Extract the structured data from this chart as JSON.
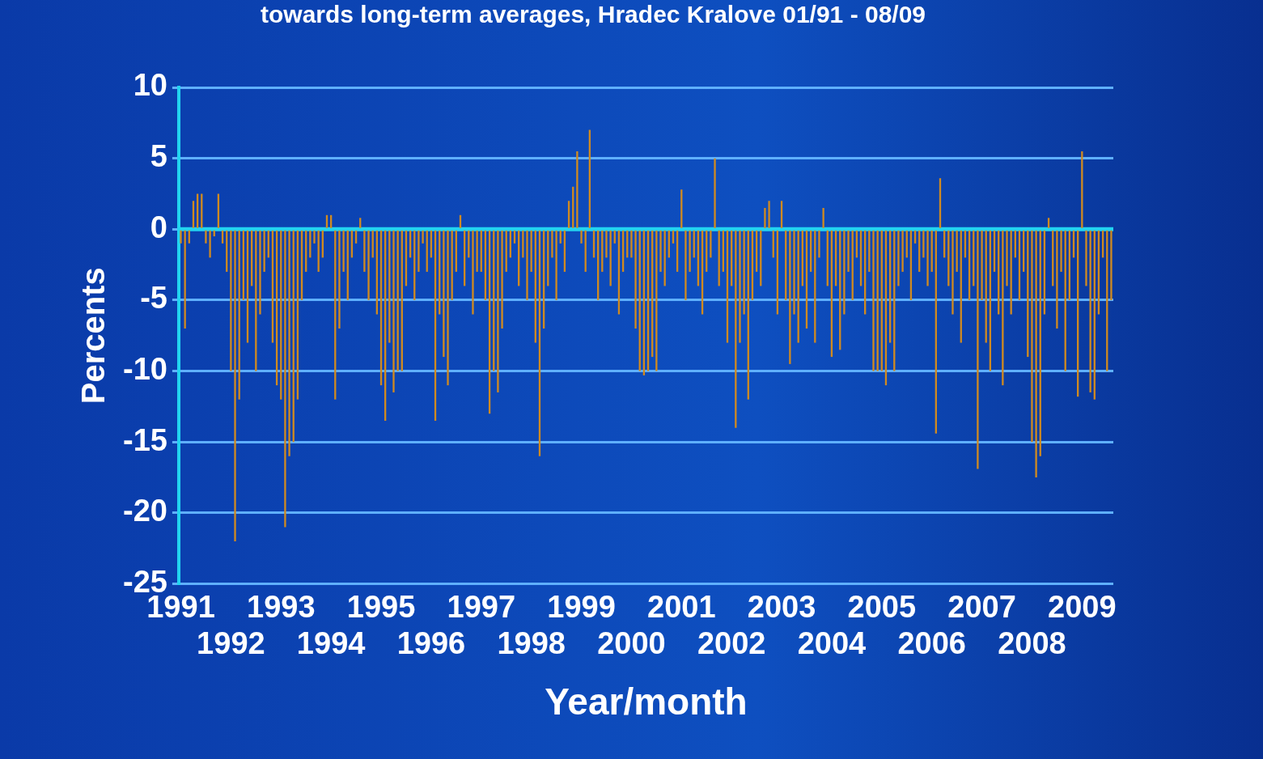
{
  "chart_data": {
    "type": "bar",
    "title": "towards long-term averages, Hradec Kralove 01/91 - 08/09",
    "xlabel": "Year/month",
    "ylabel": "Percents",
    "categories": [
      "1991",
      null,
      null,
      null,
      null,
      null,
      null,
      null,
      null,
      null,
      null,
      null,
      "1992",
      null,
      null,
      null,
      null,
      null,
      null,
      null,
      null,
      null,
      null,
      null,
      "1993",
      null,
      null,
      null,
      null,
      null,
      null,
      null,
      null,
      null,
      null,
      null,
      "1994",
      null,
      null,
      null,
      null,
      null,
      null,
      null,
      null,
      null,
      null,
      null,
      "1995",
      null,
      null,
      null,
      null,
      null,
      null,
      null,
      null,
      null,
      null,
      null,
      "1996",
      null,
      null,
      null,
      null,
      null,
      null,
      null,
      null,
      null,
      null,
      null,
      "1997",
      null,
      null,
      null,
      null,
      null,
      null,
      null,
      null,
      null,
      null,
      null,
      "1998",
      null,
      null,
      null,
      null,
      null,
      null,
      null,
      null,
      null,
      null,
      null,
      "1999",
      null,
      null,
      null,
      null,
      null,
      null,
      null,
      null,
      null,
      null,
      null,
      "2000",
      null,
      null,
      null,
      null,
      null,
      null,
      null,
      null,
      null,
      null,
      null,
      "2001",
      null,
      null,
      null,
      null,
      null,
      null,
      null,
      null,
      null,
      null,
      null,
      "2002",
      null,
      null,
      null,
      null,
      null,
      null,
      null,
      null,
      null,
      null,
      null,
      "2003",
      null,
      null,
      null,
      null,
      null,
      null,
      null,
      null,
      null,
      null,
      null,
      "2004",
      null,
      null,
      null,
      null,
      null,
      null,
      null,
      null,
      null,
      null,
      null,
      "2005",
      null,
      null,
      null,
      null,
      null,
      null,
      null,
      null,
      null,
      null,
      null,
      "2006",
      null,
      null,
      null,
      null,
      null,
      null,
      null,
      null,
      null,
      null,
      null,
      "2007",
      null,
      null,
      null,
      null,
      null,
      null,
      null,
      null,
      null,
      null,
      null,
      "2008",
      null,
      null,
      null,
      null,
      null,
      null,
      null,
      null,
      null,
      null,
      null,
      "2009",
      null,
      null,
      null,
      null,
      null,
      null,
      null
    ],
    "values": [
      -1,
      -7,
      -1,
      2,
      2.5,
      2.5,
      -1,
      -2,
      -0.5,
      2.5,
      -1,
      -3,
      -10,
      -22,
      -12,
      -5,
      -8,
      -4,
      -10,
      -6,
      -3,
      -2,
      -8,
      -11,
      -12,
      -21,
      -16,
      -15,
      -12,
      -5,
      -3,
      -2,
      -1,
      -3,
      -2,
      1,
      1,
      -12,
      -7,
      -3,
      -5,
      -2,
      -1,
      0.8,
      -3,
      -5,
      -2,
      -6,
      -11,
      -13.5,
      -8,
      -11.5,
      -10,
      -10,
      -4,
      -2,
      -5,
      -3,
      -1,
      -3,
      -2,
      -13.5,
      -6,
      -9,
      -11,
      -5,
      -3,
      1,
      -4,
      -2,
      -6,
      -3,
      -3,
      -5,
      -13,
      -10,
      -11.5,
      -7,
      -3,
      -2,
      -1,
      -4,
      -2,
      -5,
      -3,
      -8,
      -16,
      -7,
      -4,
      -2,
      -5,
      -1,
      -3,
      2,
      3,
      5.5,
      -1,
      -3,
      7,
      -2,
      -5,
      -3,
      -2,
      -4,
      -1,
      -6,
      -3,
      -2,
      -2,
      -7,
      -10,
      -10.3,
      -10,
      -9,
      -10,
      -3,
      -4,
      -2,
      -1,
      -3,
      2.8,
      -5,
      -3,
      -2,
      -4,
      -6,
      -3,
      -2,
      5,
      -4,
      -3,
      -8,
      -4,
      -14,
      -8,
      -6,
      -12,
      -5,
      -3,
      -4,
      1.5,
      2,
      -2,
      -6,
      2,
      -5,
      -9.5,
      -6,
      -8,
      -4,
      -7,
      -3,
      -8,
      -2,
      1.5,
      -4,
      -9,
      -4,
      -8.5,
      -6,
      -3,
      -5,
      -2,
      -4,
      -6,
      -3,
      -10,
      -10,
      -10,
      -11,
      -8,
      -10,
      -4,
      -3,
      -2,
      -5,
      -1,
      -3,
      -2,
      -4,
      -3,
      -14.4,
      3.6,
      -2,
      -4,
      -6,
      -3,
      -8,
      -2,
      -5,
      -4,
      -16.9,
      -5,
      -8,
      -10,
      -3,
      -6,
      -11,
      -4,
      -6,
      -2,
      -5,
      -3,
      -9,
      -15,
      -17.5,
      -16,
      -6,
      0.8,
      -4,
      -7,
      -3,
      -10,
      -5,
      -2,
      -11.8,
      5.5,
      -4,
      -11.5,
      -12,
      -6,
      -2,
      -10,
      -5
    ],
    "color": "#d08a20",
    "ylim": [
      -25,
      10
    ],
    "yticks": [
      -25,
      -20,
      -15,
      -10,
      -5,
      0,
      5,
      10
    ],
    "grid": "y",
    "legend": false,
    "ref_lines": [
      {
        "axis": "y",
        "value": 0,
        "color": "#22d4f0"
      }
    ]
  }
}
